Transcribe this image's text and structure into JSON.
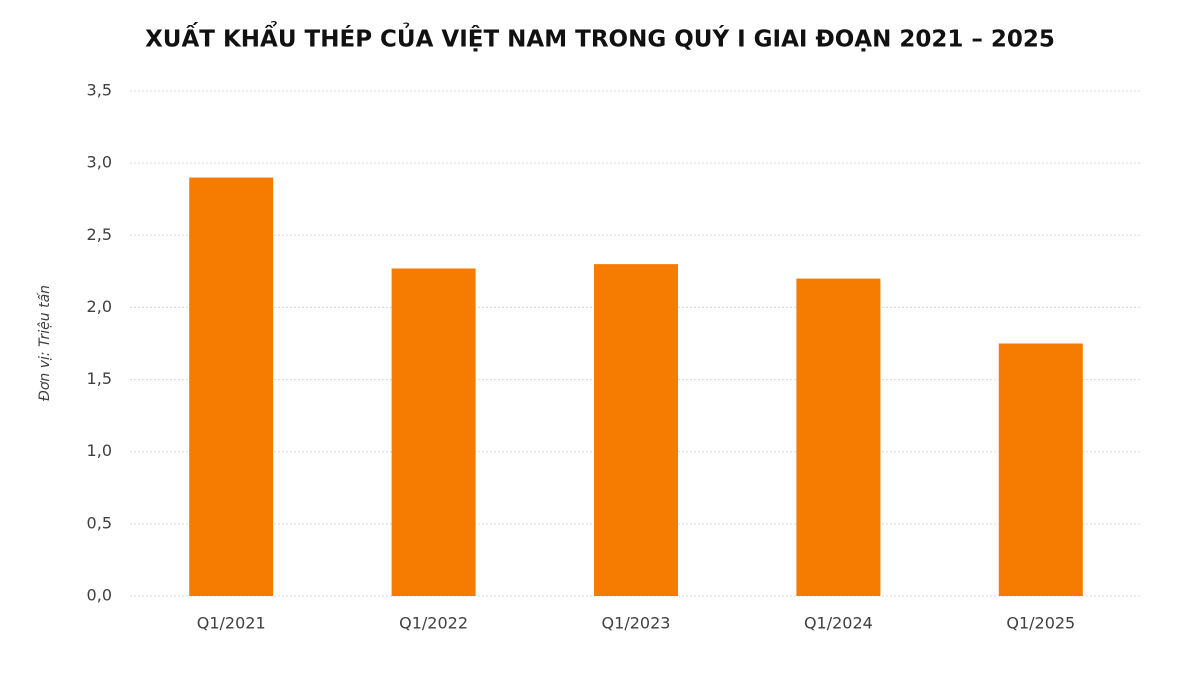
{
  "chart_data": {
    "type": "bar",
    "title": "XUẤT KHẨU THÉP CỦA VIỆT NAM TRONG QUÝ I GIAI ĐOẠN 2021 – 2025",
    "y_axis_label": "Đơn vị: Triệu tấn",
    "categories": [
      "Q1/2021",
      "Q1/2022",
      "Q1/2023",
      "Q1/2024",
      "Q1/2025"
    ],
    "values": [
      2.9,
      2.27,
      2.3,
      2.2,
      1.75
    ],
    "color": "#f57c00",
    "ylim": [
      0,
      3.5
    ],
    "yticks": [
      {
        "value": 0,
        "label": "0,0"
      },
      {
        "value": 0.5,
        "label": "0,5"
      },
      {
        "value": 1,
        "label": "1,0"
      },
      {
        "value": 1.5,
        "label": "1,5"
      },
      {
        "value": 2,
        "label": "2,0"
      },
      {
        "value": 2.5,
        "label": "2,5"
      },
      {
        "value": 3,
        "label": "3,0"
      },
      {
        "value": 3.5,
        "label": "3,5"
      }
    ],
    "grid": true
  }
}
